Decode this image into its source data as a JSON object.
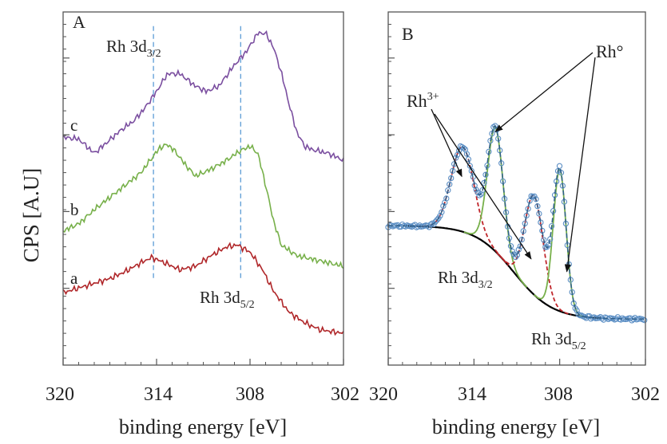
{
  "figure": {
    "ylabel": "CPS [A.U]",
    "colors": {
      "axis": "#555555",
      "curve_a": "#b0272a",
      "curve_b": "#77b04a",
      "curve_c": "#7b4fa0",
      "dashed_ref": "#5b9bd5",
      "fit_rh0": "#77b04a",
      "fit_rh3": "#c0262b",
      "background": "#000000",
      "data_points": "#5b8ec4",
      "envelope": "#2e5f8a"
    }
  },
  "chart_data": [
    {
      "type": "line",
      "panel": "A",
      "title": "",
      "xlabel": "binding energy [eV]",
      "ylabel": "CPS [A.U]",
      "xlim": [
        320,
        302
      ],
      "ylim": [
        0,
        100
      ],
      "xticks": [
        320,
        314,
        308,
        302
      ],
      "xtick_labels": [
        "320",
        "314",
        "308",
        "302"
      ],
      "yticks_shown": false,
      "annotations": [
        {
          "text": "Rh 3d3/2",
          "main": "Rh 3d",
          "sub": "3/2",
          "x": 313.5
        },
        {
          "text": "Rh 3d5/2",
          "main": "Rh 3d",
          "sub": "5/2",
          "x": 309.5
        }
      ],
      "reference_lines_x": [
        314.2,
        308.6
      ],
      "series": [
        {
          "name": "a",
          "label": "a",
          "x": [
            320,
            318.5,
            317,
            316,
            315,
            314.3,
            313.5,
            312.5,
            311.5,
            310.5,
            309.5,
            308.8,
            308,
            307.2,
            306.5,
            305.5,
            304.5,
            303.5,
            302
          ],
          "values": [
            20.5,
            22.5,
            24.5,
            26.5,
            29,
            30.5,
            29,
            27,
            28,
            31,
            33.5,
            34,
            32,
            27,
            21,
            15,
            12,
            10,
            9
          ]
        },
        {
          "name": "b",
          "label": "b",
          "x": [
            320,
            319,
            318,
            317,
            316,
            315,
            314.5,
            313.8,
            313.3,
            312.8,
            312.2,
            311.5,
            310.5,
            309.5,
            308.7,
            308,
            307.5,
            307,
            306.5,
            306,
            305,
            304,
            303,
            302
          ],
          "values": [
            38,
            40,
            44,
            47.5,
            51,
            54.5,
            57.5,
            61.5,
            62.5,
            60.5,
            57,
            53.5,
            55.5,
            58,
            60.5,
            62,
            60,
            51,
            41,
            34,
            31,
            30,
            29,
            28
          ]
        },
        {
          "name": "c",
          "label": "c",
          "x": [
            320,
            319,
            318,
            317.2,
            316.3,
            315.5,
            314.8,
            314,
            313.3,
            312.5,
            311.5,
            310.8,
            310,
            309.5,
            309,
            308.2,
            307.5,
            307,
            306.5,
            306,
            305.5,
            305,
            304.5,
            304,
            303,
            302
          ],
          "values": [
            64.5,
            64,
            60,
            63,
            66.5,
            69,
            72.5,
            77.5,
            82.5,
            82.5,
            79,
            77.5,
            79,
            82,
            85,
            89,
            94,
            94,
            90,
            83,
            74,
            66,
            62,
            61,
            60,
            58
          ]
        }
      ]
    },
    {
      "type": "line",
      "panel": "B",
      "title": "",
      "xlabel": "binding energy [eV]",
      "ylabel": "",
      "xlim": [
        320,
        302
      ],
      "ylim": [
        0,
        100
      ],
      "xticks": [
        320,
        314,
        308,
        302
      ],
      "xtick_labels": [
        "320",
        "314",
        "308",
        "302"
      ],
      "yticks_shown": false,
      "annotations": [
        {
          "text": "Rh 3d3/2",
          "main": "Rh 3d",
          "sub": "3/2",
          "x": 312.5
        },
        {
          "text": "Rh 3d5/2",
          "main": "Rh 3d",
          "sub": "5/2",
          "x": 306
        },
        {
          "text": "Rh3+",
          "main": "Rh",
          "sup": "3+",
          "points_to_x": [
            315,
            310
          ]
        },
        {
          "text": "Rh°",
          "main": "Rh°",
          "points_to_x": [
            312.6,
            308.4
          ]
        }
      ],
      "components": {
        "background": {
          "name": "background",
          "start": 39.5,
          "end": 13,
          "mid": 311.2,
          "width": 1.35
        },
        "peaks": [
          {
            "name": "Rh3+ 3d3/2",
            "center": 314.8,
            "amplitude": 24,
            "sigma": 0.8,
            "style": "dashed"
          },
          {
            "name": "Rh0 3d3/2",
            "center": 312.5,
            "amplitude": 35,
            "sigma": 0.55,
            "style": "solid"
          },
          {
            "name": "Rh3+ 3d5/2",
            "center": 309.8,
            "amplitude": 28,
            "sigma": 0.65,
            "style": "dashed"
          },
          {
            "name": "Rh0 3d5/2",
            "center": 308.0,
            "amplitude": 40,
            "sigma": 0.45,
            "style": "solid"
          }
        ]
      },
      "series": [
        {
          "name": "experimental data",
          "style": "open circles"
        },
        {
          "name": "fit envelope",
          "style": "dashed"
        }
      ]
    }
  ],
  "panels": {
    "A": {
      "panel_label": "A",
      "series_labels": [
        "a",
        "b",
        "c"
      ],
      "annot_3d32_main": "Rh 3d",
      "annot_3d32_sub": "3/2",
      "annot_3d52_main": "Rh 3d",
      "annot_3d52_sub": "5/2",
      "xlabel": "binding energy [eV]",
      "ticks": [
        "320",
        "314",
        "308",
        "302"
      ]
    },
    "B": {
      "panel_label": "B",
      "rh0_label": "Rh°",
      "rh3_main": "Rh",
      "rh3_sup": "3+",
      "annot_3d32_main": "Rh 3d",
      "annot_3d32_sub": "3/2",
      "annot_3d52_main": "Rh 3d",
      "annot_3d52_sub": "5/2",
      "xlabel": "binding energy [eV]",
      "ticks": [
        "320",
        "314",
        "308",
        "302"
      ]
    }
  }
}
